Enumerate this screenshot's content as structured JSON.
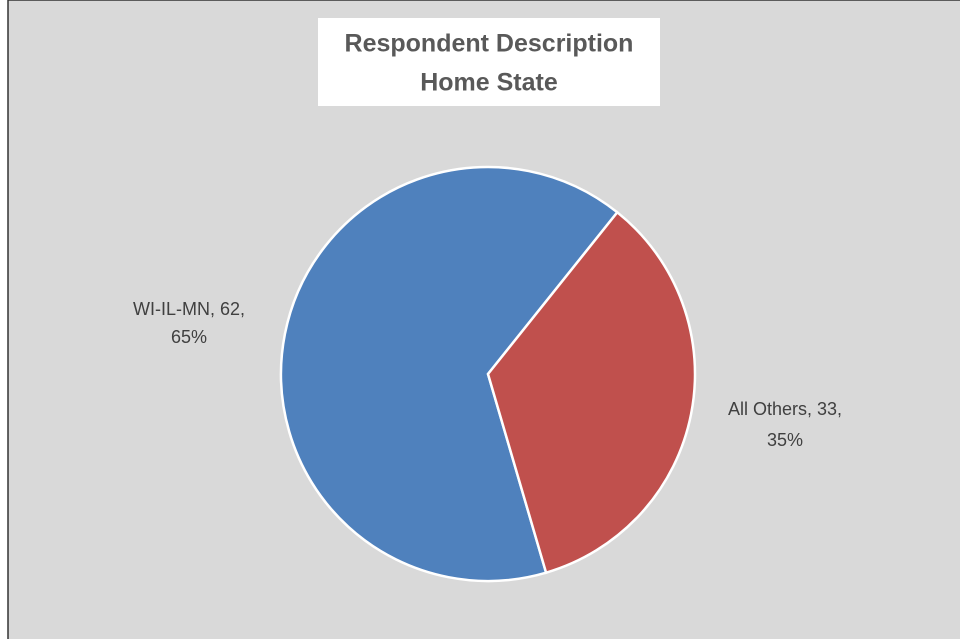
{
  "chart_data": {
    "type": "pie",
    "title": [
      "Respondent Description",
      "Home State"
    ],
    "values": [
      62,
      33
    ],
    "value_labels": [
      [
        "WI-IL-MN, 62,",
        "65%"
      ],
      [
        "All Others, 33,",
        "35%"
      ]
    ],
    "colors": [
      "#4f81bd",
      "#c0504d"
    ]
  }
}
